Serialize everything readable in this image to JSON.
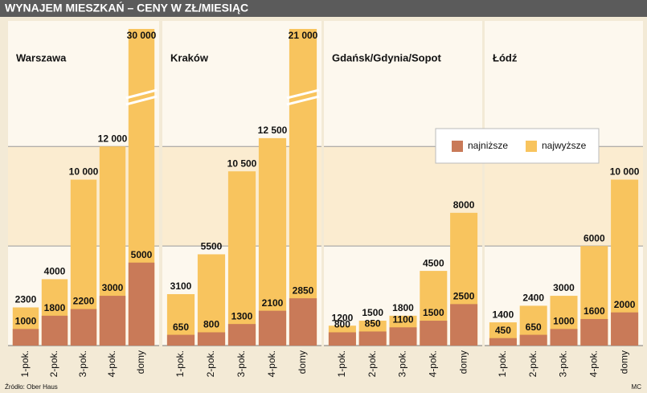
{
  "title": "WYNAJEM MIESZKAŃ – CENY W ZŁ/MIESIĄC",
  "source": "Źródło: Ober Haus",
  "credit": "MC",
  "legend": [
    {
      "name": "najniższe",
      "color": "#c97a58"
    },
    {
      "name": "najwyższe",
      "color": "#f8c45e"
    }
  ],
  "chart_data": [
    {
      "type": "bar",
      "title": "Warszawa",
      "categories": [
        "1-pok.",
        "2-pok.",
        "3-pok.",
        "4-pok.",
        "domy"
      ],
      "series": [
        {
          "values": [
            1000,
            1800,
            2200,
            3000,
            5000
          ]
        },
        {
          "values": [
            2300,
            4000,
            10000,
            12000,
            30000
          ],
          "value_labels": [
            "2300",
            "4000",
            "10 000",
            "12 000",
            "30 000"
          ]
        }
      ],
      "ylim": [
        0,
        18500
      ],
      "gridlines": [
        6000,
        12000
      ]
    },
    {
      "type": "bar",
      "title": "Kraków",
      "categories": [
        "1-pok.",
        "2-pok.",
        "3-pok.",
        "4-pok.",
        "domy"
      ],
      "series": [
        {
          "values": [
            650,
            800,
            1300,
            2100,
            2850
          ]
        },
        {
          "values": [
            3100,
            5500,
            10500,
            12500,
            21000
          ],
          "value_labels": [
            "3100",
            "5500",
            "10 500",
            "12 500",
            "21 000"
          ]
        }
      ],
      "ylim": [
        0,
        18500
      ],
      "gridlines": [
        6000,
        12000
      ]
    },
    {
      "type": "bar",
      "title": "Gdańsk/Gdynia/Sopot",
      "categories": [
        "1-pok.",
        "2-pok.",
        "3-pok.",
        "4-pok.",
        "domy"
      ],
      "series": [
        {
          "values": [
            800,
            850,
            1100,
            1500,
            2500
          ]
        },
        {
          "values": [
            1200,
            1500,
            1800,
            4500,
            8000
          ]
        }
      ],
      "ylim": [
        0,
        18500
      ],
      "gridlines": [
        6000,
        12000
      ]
    },
    {
      "type": "bar",
      "title": "Łódź",
      "categories": [
        "1-pok.",
        "2-pok.",
        "3-pok.",
        "4-pok.",
        "domy"
      ],
      "series": [
        {
          "values": [
            450,
            650,
            1000,
            1600,
            2000
          ]
        },
        {
          "values": [
            1400,
            2400,
            3000,
            6000,
            10000
          ],
          "value_labels": [
            "1400",
            "2400",
            "3000",
            "6000",
            "10 000"
          ]
        }
      ],
      "ylim": [
        0,
        18500
      ],
      "gridlines": [
        6000,
        12000
      ]
    }
  ]
}
